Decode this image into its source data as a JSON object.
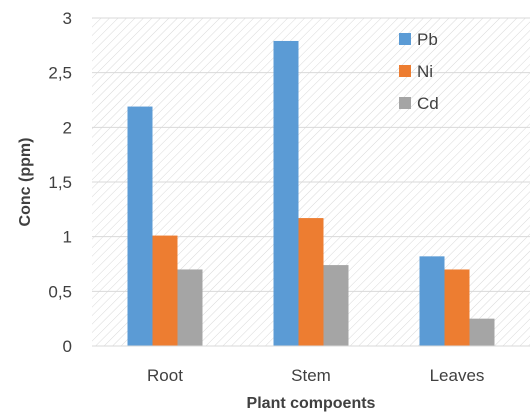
{
  "chart_data": {
    "type": "bar",
    "title": "",
    "xlabel": "Plant compoents",
    "ylabel": "Conc (ppm)",
    "categories": [
      "Root",
      "Stem",
      "Leaves"
    ],
    "ylim": [
      0,
      3
    ],
    "yticks": [
      "0",
      "0,5",
      "1",
      "1,5",
      "2",
      "2,5",
      "3"
    ],
    "ytick_values": [
      0,
      0.5,
      1,
      1.5,
      2,
      2.5,
      3
    ],
    "series": [
      {
        "name": "Pb",
        "color": "#5B9BD5",
        "values": [
          2.19,
          2.79,
          0.82
        ]
      },
      {
        "name": "Ni",
        "color": "#ED7D31",
        "values": [
          1.01,
          1.17,
          0.7
        ]
      },
      {
        "name": "Cd",
        "color": "#A5A5A5",
        "values": [
          0.7,
          0.74,
          0.25
        ]
      }
    ],
    "legend_position": "top-right",
    "background": "hatched"
  }
}
